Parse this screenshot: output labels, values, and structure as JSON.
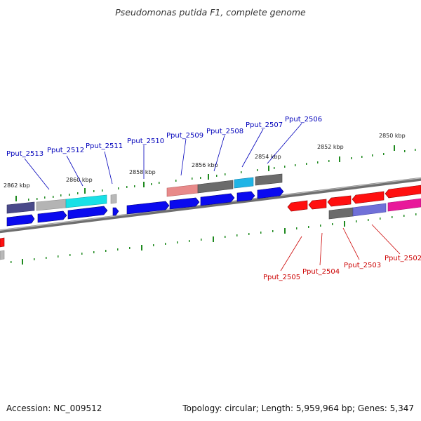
{
  "title": "Pseudomonas putida F1, complete genome",
  "footer": {
    "accession": "Accession: NC_009512",
    "summary": "Topology: circular; Length: 5,959,964 bp; Genes: 5,347"
  },
  "colors": {
    "backbone": "#8a8a8a",
    "tick": "#1f8a1f",
    "forward_gene": "#0000ee",
    "reverse_gene": "#ff0000",
    "forward_label": "#0000bb",
    "reverse_label": "#cc0000"
  },
  "ruler": {
    "ticks": [
      {
        "label": "2862 kbp"
      },
      {
        "label": "2860 kbp"
      },
      {
        "label": "2858 kbp"
      },
      {
        "label": "2856 kbp"
      },
      {
        "label": "2854 kbp"
      },
      {
        "label": "2852 kbp"
      },
      {
        "label": "2850 kbp"
      }
    ]
  },
  "forward_labels": [
    "Pput_2513",
    "Pput_2512",
    "Pput_2511",
    "Pput_2510",
    "Pput_2509",
    "Pput_2508",
    "Pput_2507",
    "Pput_2506"
  ],
  "reverse_labels": [
    "Pput_2505",
    "Pput_2504",
    "Pput_2503",
    "Pput_2502"
  ]
}
